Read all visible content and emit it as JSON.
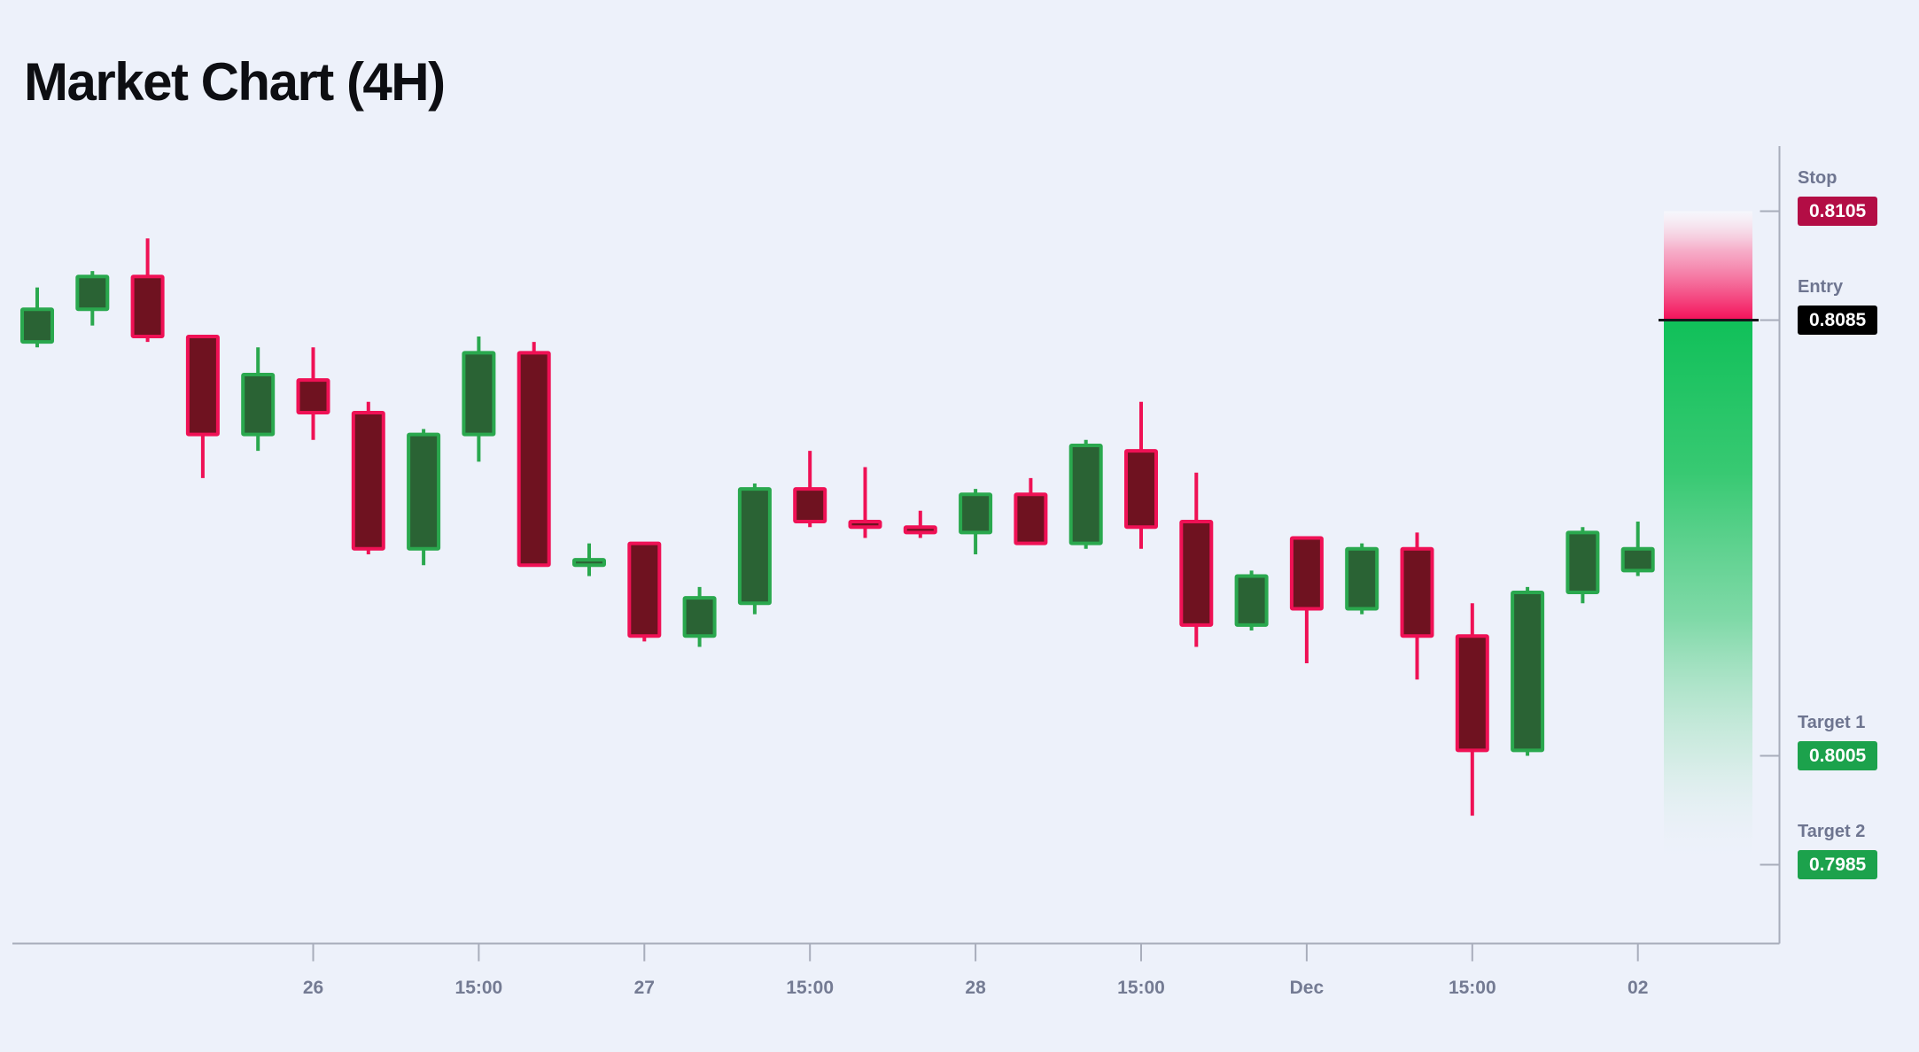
{
  "title": "Market Chart (4H)",
  "colors": {
    "background": "#edf1fa",
    "title_text": "#0d0e12",
    "bull_body": "#2a6334",
    "bull_border": "#2aa84e",
    "bear_body": "#6f1220",
    "bear_border": "#ef1155",
    "entry_line": "#15161a",
    "axis_line": "#a8adbb",
    "tick_label": "#747b93",
    "level_label": "#6e7590",
    "zone_pink": "#f31059",
    "zone_green": "#10c059"
  },
  "levels": [
    {
      "name": "Stop",
      "price": "0.8105",
      "value": 0.8105,
      "badge_color": "#b30d45"
    },
    {
      "name": "Entry",
      "price": "0.8085",
      "value": 0.8085,
      "badge_color": "#000000"
    },
    {
      "name": "Target 1",
      "price": "0.8005",
      "value": 0.8005,
      "badge_color": "#1ca24c"
    },
    {
      "name": "Target 2",
      "price": "0.7985",
      "value": 0.7985,
      "badge_color": "#1ca24c"
    }
  ],
  "x_axis": {
    "tick_labels": [
      {
        "candle": 5,
        "label": "26"
      },
      {
        "candle": 8,
        "label": "15:00"
      },
      {
        "candle": 11,
        "label": "27"
      },
      {
        "candle": 14,
        "label": "15:00"
      },
      {
        "candle": 17,
        "label": "28"
      },
      {
        "candle": 20,
        "label": "15:00"
      },
      {
        "candle": 23,
        "label": "Dec"
      },
      {
        "candle": 26,
        "label": "15:00"
      },
      {
        "candle": 29,
        "label": "02"
      }
    ]
  },
  "chart_data": {
    "type": "candlestick",
    "title": "Market Chart (4H)",
    "timeframe": "4H",
    "legend_position": "none",
    "grid": false,
    "y_axis": {
      "side": "right",
      "labeled_levels": [
        0.8105,
        0.8085,
        0.8005,
        0.7985
      ]
    },
    "x_categories": [
      "26",
      "15:00",
      "27",
      "15:00",
      "28",
      "15:00",
      "Dec",
      "15:00",
      "02"
    ],
    "trade_zone": {
      "risk_top": 0.8105,
      "entry": 0.8085,
      "reward_bottom": 0.7985
    },
    "candles": [
      {
        "o": 0.8081,
        "h": 0.8091,
        "l": 0.808,
        "c": 0.8087
      },
      {
        "o": 0.8087,
        "h": 0.8094,
        "l": 0.8084,
        "c": 0.8093
      },
      {
        "o": 0.8093,
        "h": 0.81,
        "l": 0.8081,
        "c": 0.8082
      },
      {
        "o": 0.8082,
        "h": 0.8082,
        "l": 0.8056,
        "c": 0.8064
      },
      {
        "o": 0.8064,
        "h": 0.808,
        "l": 0.8061,
        "c": 0.8075
      },
      {
        "o": 0.8074,
        "h": 0.808,
        "l": 0.8063,
        "c": 0.8068
      },
      {
        "o": 0.8068,
        "h": 0.807,
        "l": 0.8042,
        "c": 0.8043
      },
      {
        "o": 0.8043,
        "h": 0.8065,
        "l": 0.804,
        "c": 0.8064
      },
      {
        "o": 0.8064,
        "h": 0.8082,
        "l": 0.8059,
        "c": 0.8079
      },
      {
        "o": 0.8079,
        "h": 0.8081,
        "l": 0.804,
        "c": 0.804
      },
      {
        "o": 0.804,
        "h": 0.8044,
        "l": 0.8038,
        "c": 0.8041
      },
      {
        "o": 0.8044,
        "h": 0.8044,
        "l": 0.8026,
        "c": 0.8027
      },
      {
        "o": 0.8027,
        "h": 0.8036,
        "l": 0.8025,
        "c": 0.8034
      },
      {
        "o": 0.8033,
        "h": 0.8055,
        "l": 0.8031,
        "c": 0.8054
      },
      {
        "o": 0.8054,
        "h": 0.8061,
        "l": 0.8047,
        "c": 0.8048
      },
      {
        "o": 0.8048,
        "h": 0.8058,
        "l": 0.8045,
        "c": 0.8047
      },
      {
        "o": 0.8047,
        "h": 0.805,
        "l": 0.8045,
        "c": 0.8046
      },
      {
        "o": 0.8046,
        "h": 0.8054,
        "l": 0.8042,
        "c": 0.8053
      },
      {
        "o": 0.8053,
        "h": 0.8056,
        "l": 0.8044,
        "c": 0.8044
      },
      {
        "o": 0.8044,
        "h": 0.8063,
        "l": 0.8043,
        "c": 0.8062
      },
      {
        "o": 0.8061,
        "h": 0.807,
        "l": 0.8043,
        "c": 0.8047
      },
      {
        "o": 0.8048,
        "h": 0.8057,
        "l": 0.8025,
        "c": 0.8029
      },
      {
        "o": 0.8029,
        "h": 0.8039,
        "l": 0.8028,
        "c": 0.8038
      },
      {
        "o": 0.8045,
        "h": 0.8045,
        "l": 0.8022,
        "c": 0.8032
      },
      {
        "o": 0.8032,
        "h": 0.8044,
        "l": 0.8031,
        "c": 0.8043
      },
      {
        "o": 0.8043,
        "h": 0.8046,
        "l": 0.8019,
        "c": 0.8027
      },
      {
        "o": 0.8027,
        "h": 0.8033,
        "l": 0.7994,
        "c": 0.8006
      },
      {
        "o": 0.8006,
        "h": 0.8036,
        "l": 0.8005,
        "c": 0.8035
      },
      {
        "o": 0.8035,
        "h": 0.8047,
        "l": 0.8033,
        "c": 0.8046
      },
      {
        "o": 0.8039,
        "h": 0.8048,
        "l": 0.8038,
        "c": 0.8043
      }
    ]
  }
}
